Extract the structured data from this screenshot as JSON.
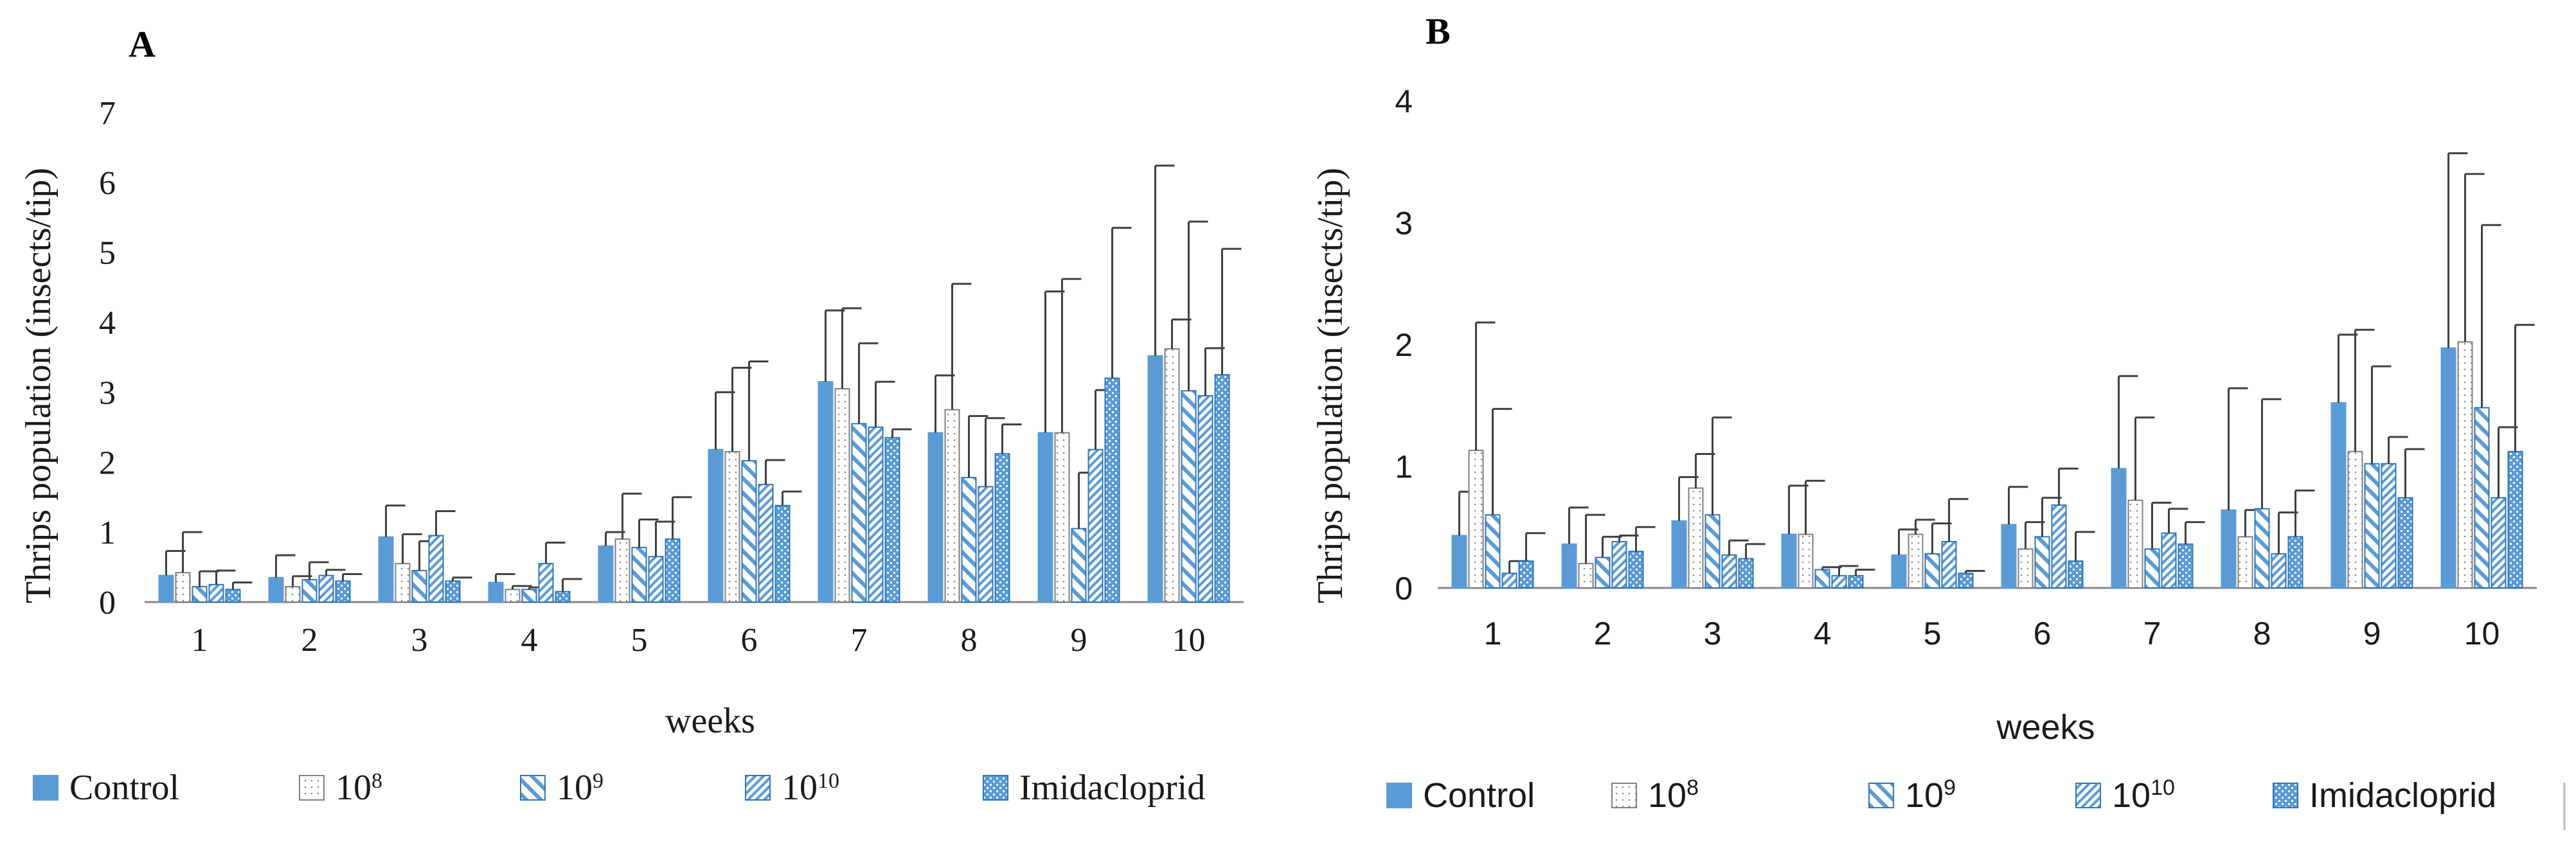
{
  "colors": {
    "series": "#5b9bd5",
    "series_dark": "#2e75b6",
    "axis": "#888888",
    "errorbar": "#404040",
    "text": "#1a1a1a"
  },
  "legend": [
    {
      "base": "Control",
      "sup": "",
      "pattern": "solid"
    },
    {
      "base": "10",
      "sup": "8",
      "pattern": "dotted"
    },
    {
      "base": "10",
      "sup": "9",
      "pattern": "wide-diag"
    },
    {
      "base": "10",
      "sup": "10",
      "pattern": "narrow-diag"
    },
    {
      "base": "Imidacloprid",
      "sup": "",
      "pattern": "cross"
    }
  ],
  "chart_data": [
    {
      "panel": "A",
      "type": "bar",
      "title": "",
      "xlabel": "weeks",
      "ylabel": "Thrips population (insects/tip)",
      "ylim": [
        0,
        7
      ],
      "yticks": [
        0,
        1,
        2,
        3,
        4,
        5,
        6,
        7
      ],
      "categories": [
        "1",
        "2",
        "3",
        "4",
        "5",
        "6",
        "7",
        "8",
        "9",
        "10"
      ],
      "series": [
        {
          "name": "Control",
          "values": [
            0.38,
            0.35,
            0.93,
            0.28,
            0.8,
            2.18,
            3.15,
            2.42,
            2.42,
            3.52
          ],
          "errors": [
            0.35,
            0.32,
            0.45,
            0.12,
            0.2,
            0.82,
            1.02,
            0.82,
            2.02,
            2.72
          ]
        },
        {
          "name": "10^8",
          "values": [
            0.42,
            0.22,
            0.55,
            0.18,
            0.9,
            2.15,
            3.05,
            2.75,
            2.42,
            3.62
          ],
          "errors": [
            0.58,
            0.15,
            0.42,
            0.05,
            0.65,
            1.2,
            1.15,
            1.8,
            2.2,
            0.42
          ]
        },
        {
          "name": "10^9",
          "values": [
            0.22,
            0.32,
            0.45,
            0.18,
            0.78,
            2.02,
            2.55,
            1.78,
            1.05,
            3.02
          ],
          "errors": [
            0.22,
            0.25,
            0.42,
            0.03,
            0.4,
            1.42,
            1.15,
            0.88,
            0.8,
            2.42
          ]
        },
        {
          "name": "10^10",
          "values": [
            0.25,
            0.38,
            0.95,
            0.55,
            0.65,
            1.68,
            2.5,
            1.65,
            2.18,
            2.95
          ],
          "errors": [
            0.2,
            0.08,
            0.35,
            0.3,
            0.5,
            0.35,
            0.65,
            0.98,
            0.85,
            0.68
          ]
        },
        {
          "name": "Imidacloprid",
          "values": [
            0.18,
            0.3,
            0.3,
            0.15,
            0.9,
            1.38,
            2.35,
            2.12,
            3.2,
            3.25
          ],
          "errors": [
            0.1,
            0.1,
            0.05,
            0.18,
            0.6,
            0.2,
            0.12,
            0.42,
            2.15,
            1.8
          ]
        }
      ]
    },
    {
      "panel": "B",
      "type": "bar",
      "title": "",
      "xlabel": "weeks",
      "ylabel": "Thrips population (insects/tip)",
      "ylim": [
        0,
        4
      ],
      "yticks": [
        0,
        1,
        2,
        3,
        4
      ],
      "categories": [
        "1",
        "2",
        "3",
        "4",
        "5",
        "6",
        "7",
        "8",
        "9",
        "10"
      ],
      "series": [
        {
          "name": "Control",
          "values": [
            0.43,
            0.36,
            0.55,
            0.44,
            0.27,
            0.52,
            0.98,
            0.64,
            1.52,
            1.97
          ],
          "errors": [
            0.36,
            0.3,
            0.36,
            0.4,
            0.21,
            0.31,
            0.76,
            1.0,
            0.56,
            1.6
          ]
        },
        {
          "name": "10^8",
          "values": [
            1.13,
            0.2,
            0.82,
            0.44,
            0.44,
            0.32,
            0.72,
            0.42,
            1.12,
            2.02
          ],
          "errors": [
            1.05,
            0.4,
            0.28,
            0.44,
            0.12,
            0.22,
            0.68,
            0.22,
            1.0,
            1.38
          ]
        },
        {
          "name": "10^9",
          "values": [
            0.6,
            0.25,
            0.6,
            0.15,
            0.28,
            0.42,
            0.32,
            0.65,
            1.02,
            1.48
          ],
          "errors": [
            0.87,
            0.17,
            0.8,
            0.02,
            0.25,
            0.32,
            0.38,
            0.9,
            0.8,
            1.5
          ]
        },
        {
          "name": "10^10",
          "values": [
            0.12,
            0.38,
            0.27,
            0.1,
            0.38,
            0.68,
            0.45,
            0.28,
            1.02,
            0.74
          ],
          "errors": [
            0.1,
            0.05,
            0.12,
            0.08,
            0.35,
            0.3,
            0.2,
            0.34,
            0.22,
            0.58
          ]
        },
        {
          "name": "Imidacloprid",
          "values": [
            0.22,
            0.3,
            0.24,
            0.1,
            0.12,
            0.22,
            0.36,
            0.42,
            0.74,
            1.12
          ],
          "errors": [
            0.23,
            0.2,
            0.12,
            0.05,
            0.02,
            0.24,
            0.18,
            0.38,
            0.4,
            1.04
          ]
        }
      ]
    }
  ]
}
